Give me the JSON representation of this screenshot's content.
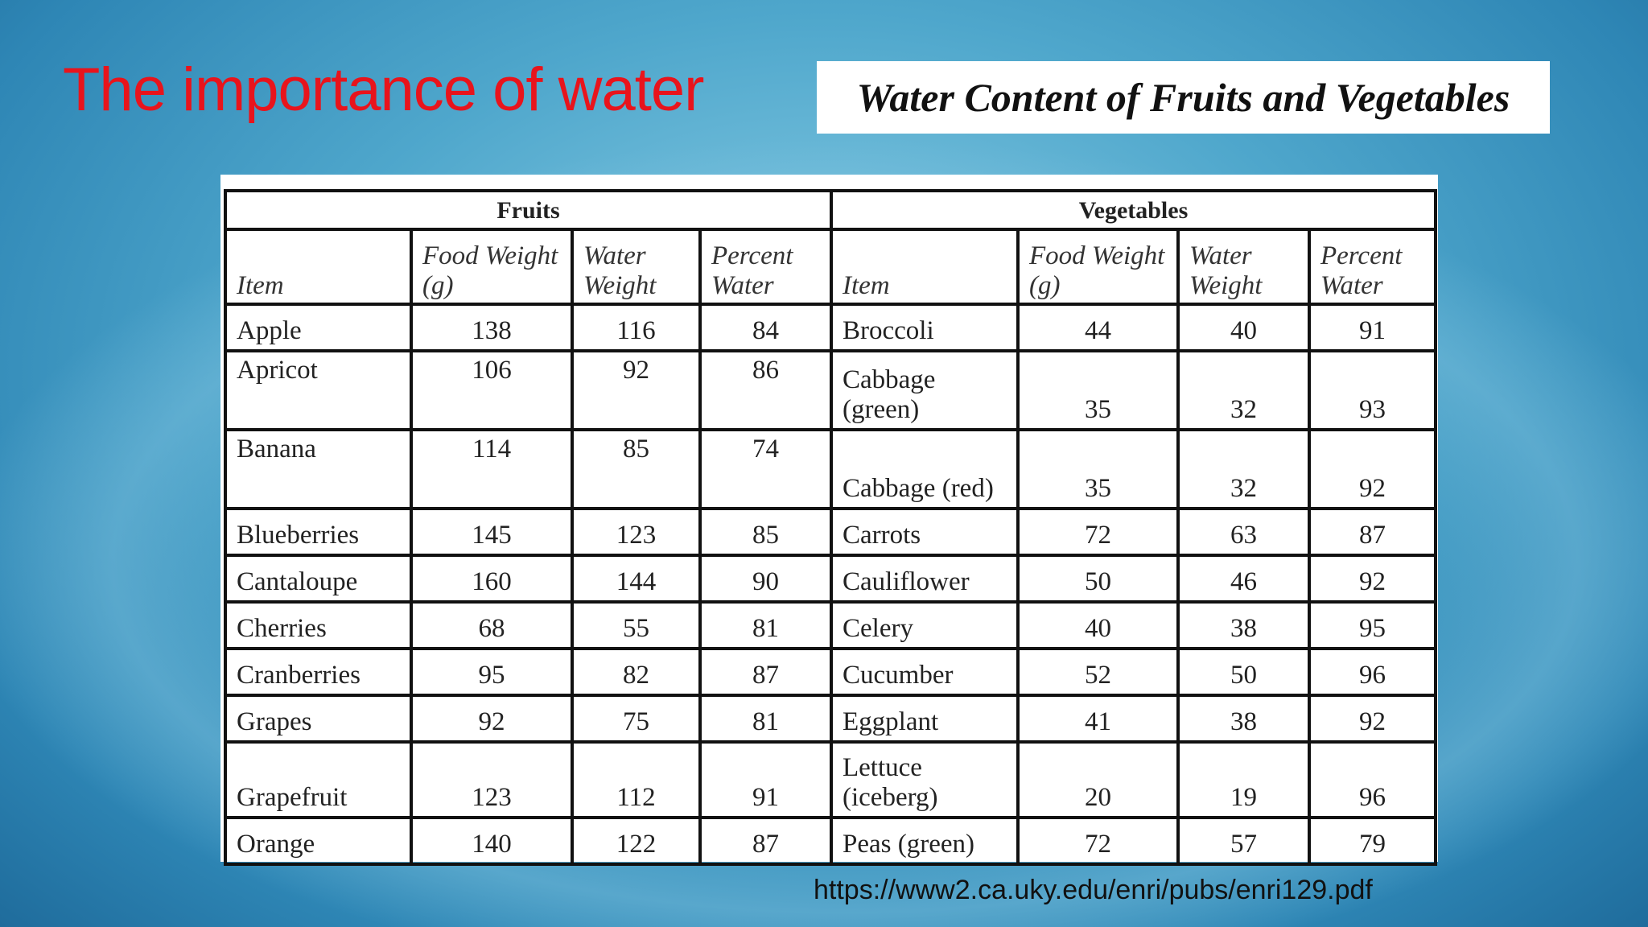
{
  "slide": {
    "title": "The importance of water",
    "table_title": "Water Content of Fruits and Vegetables",
    "source": "https://www2.ca.uky.edu/enri/pubs/enri129.pdf"
  },
  "table": {
    "groups": [
      "Fruits",
      "Vegetables"
    ],
    "columns": [
      "Item",
      "Food Weight (g)",
      "Water Weight",
      "Percent Water",
      "Item",
      "Food Weight (g)",
      "Water Weight",
      "Percent Water"
    ],
    "rows": [
      [
        "Apple",
        138,
        116,
        84,
        "Broccoli",
        44,
        40,
        91
      ],
      [
        "Apricot",
        106,
        92,
        86,
        "Cabbage (green)",
        35,
        32,
        93
      ],
      [
        "Banana",
        114,
        85,
        74,
        "Cabbage (red)",
        35,
        32,
        92
      ],
      [
        "Blueberries",
        145,
        123,
        85,
        "Carrots",
        72,
        63,
        87
      ],
      [
        "Cantaloupe",
        160,
        144,
        90,
        "Cauliflower",
        50,
        46,
        92
      ],
      [
        "Cherries",
        68,
        55,
        81,
        "Celery",
        40,
        38,
        95
      ],
      [
        "Cranberries",
        95,
        82,
        87,
        "Cucumber",
        52,
        50,
        96
      ],
      [
        "Grapes",
        92,
        75,
        81,
        "Eggplant",
        41,
        38,
        92
      ],
      [
        "Grapefruit",
        123,
        112,
        91,
        "Lettuce (iceberg)",
        20,
        19,
        96
      ],
      [
        "Orange",
        140,
        122,
        87,
        "Peas (green)",
        72,
        57,
        79
      ]
    ]
  }
}
